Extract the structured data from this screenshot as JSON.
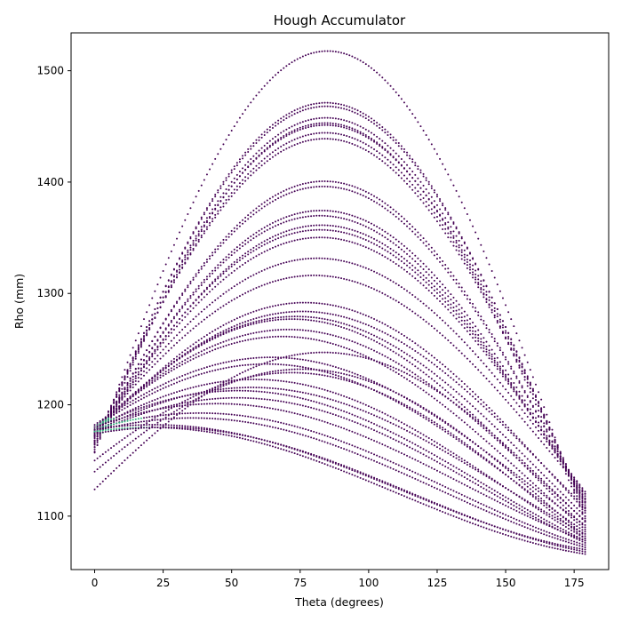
{
  "chart_data": {
    "type": "scatter",
    "title": "Hough Accumulator",
    "xlabel": "Theta (degrees)",
    "ylabel": "Rho (mm)",
    "xlim": [
      -8.6,
      187.6
    ],
    "ylim": [
      1052,
      1534
    ],
    "xticks": [
      "0",
      "25",
      "50",
      "75",
      "100",
      "125",
      "150",
      "175"
    ],
    "yticks": [
      "1100",
      "1200",
      "1300",
      "1400",
      "1500"
    ],
    "grid": false,
    "colormap": "viridis",
    "marker_color_low": "#440154",
    "marker_color_high": "#2fb47c",
    "theta_step_degrees": 1,
    "theta_range": [
      0,
      179
    ],
    "series": [
      {
        "start": 1157,
        "peak_theta": 90,
        "peak": 1512,
        "end": 1095
      },
      {
        "start": 1162,
        "peak_theta": 87,
        "peak": 1474,
        "end": 1103
      },
      {
        "start": 1160,
        "peak_theta": 87,
        "peak": 1464,
        "end": 1100
      },
      {
        "start": 1158,
        "peak_theta": 86,
        "peak": 1460,
        "end": 1098
      },
      {
        "start": 1162,
        "peak_theta": 86,
        "peak": 1454,
        "end": 1105
      },
      {
        "start": 1164,
        "peak_theta": 86,
        "peak": 1449,
        "end": 1107
      },
      {
        "start": 1166,
        "peak_theta": 85,
        "peak": 1445,
        "end": 1108
      },
      {
        "start": 1168,
        "peak_theta": 84,
        "peak": 1434,
        "end": 1110
      },
      {
        "start": 1165,
        "peak_theta": 82,
        "peak": 1399,
        "end": 1112
      },
      {
        "start": 1167,
        "peak_theta": 82,
        "peak": 1393,
        "end": 1113
      },
      {
        "start": 1170,
        "peak_theta": 82,
        "peak": 1372,
        "end": 1115
      },
      {
        "start": 1171,
        "peak_theta": 81,
        "peak": 1368,
        "end": 1113
      },
      {
        "start": 1168,
        "peak_theta": 81,
        "peak": 1363,
        "end": 1116
      },
      {
        "start": 1172,
        "peak_theta": 81,
        "peak": 1358,
        "end": 1118
      },
      {
        "start": 1172,
        "peak_theta": 80,
        "peak": 1349,
        "end": 1120
      },
      {
        "start": 1175,
        "peak_theta": 79,
        "peak": 1330,
        "end": 1122
      },
      {
        "start": 1176,
        "peak_theta": 78,
        "peak": 1315,
        "end": 1120
      },
      {
        "start": 1173,
        "peak_theta": 78,
        "peak": 1292,
        "end": 1105
      },
      {
        "start": 1176,
        "peak_theta": 77,
        "peak": 1284,
        "end": 1108
      },
      {
        "start": 1178,
        "peak_theta": 77,
        "peak": 1280,
        "end": 1100
      },
      {
        "start": 1177,
        "peak_theta": 76,
        "peak": 1276,
        "end": 1090
      },
      {
        "start": 1180,
        "peak_theta": 75,
        "peak": 1268,
        "end": 1096
      },
      {
        "start": 1180,
        "peak_theta": 74,
        "peak": 1260,
        "end": 1088
      },
      {
        "start": 1182,
        "peak_theta": 72,
        "peak": 1242,
        "end": 1092
      },
      {
        "start": 1180,
        "peak_theta": 68,
        "peak": 1236,
        "end": 1086
      },
      {
        "start": 1178,
        "peak_theta": 64,
        "peak": 1222,
        "end": 1080
      },
      {
        "start": 1176,
        "peak_theta": 62,
        "peak": 1215,
        "end": 1084
      },
      {
        "start": 1180,
        "peak_theta": 60,
        "peak": 1212,
        "end": 1078
      },
      {
        "start": 1175,
        "peak_theta": 58,
        "peak": 1206,
        "end": 1076
      },
      {
        "start": 1180,
        "peak_theta": 54,
        "peak": 1200,
        "end": 1078
      },
      {
        "start": 1178,
        "peak_theta": 45,
        "peak": 1192,
        "end": 1074
      },
      {
        "start": 1176,
        "peak_theta": 38,
        "peak": 1188,
        "end": 1072
      },
      {
        "start": 1178,
        "peak_theta": 22,
        "peak": 1182,
        "end": 1070
      },
      {
        "start": 1176,
        "peak_theta": 12,
        "peak": 1179,
        "end": 1066
      },
      {
        "start": 1174,
        "peak_theta": 8,
        "peak": 1177,
        "end": 1068
      },
      {
        "start": 1150,
        "peak_theta": 55,
        "peak": 1224,
        "end": 1080
      },
      {
        "start": 1124,
        "peak_theta": 70,
        "peak": 1242,
        "end": 1095
      },
      {
        "start": 1140,
        "peak_theta": 66,
        "peak": 1230,
        "end": 1082
      }
    ]
  }
}
